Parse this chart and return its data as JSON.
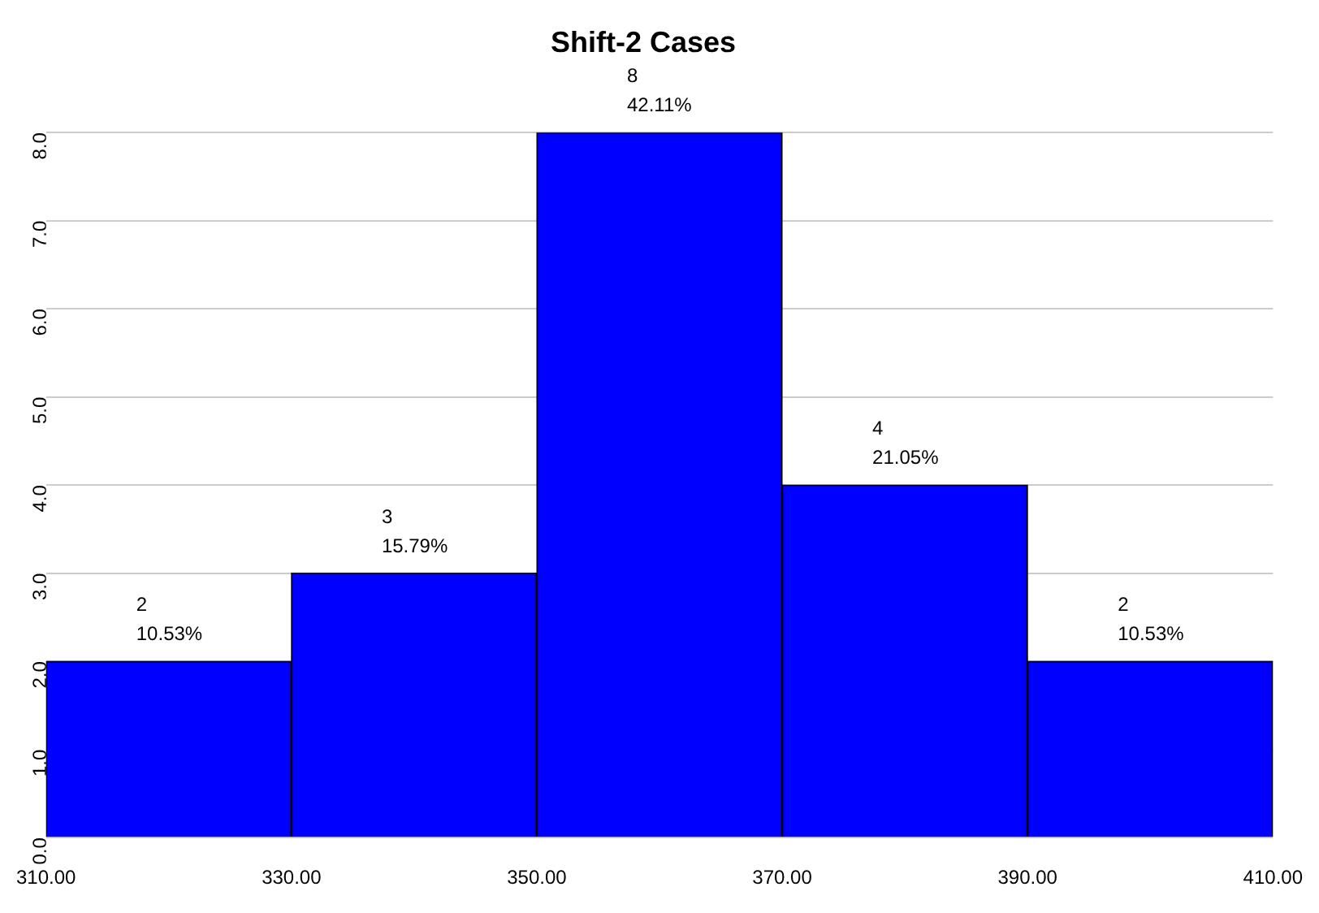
{
  "chart_data": {
    "type": "histogram",
    "title": "Shift-2 Cases",
    "bins": [
      310,
      330,
      350,
      370,
      390,
      410
    ],
    "values": [
      2,
      3,
      8,
      4,
      2
    ],
    "value_labels": [
      "2\n10.53%",
      "3\n15.79%",
      "8\n42.11%",
      "4\n21.05%",
      "2\n10.53%"
    ],
    "color": "#0000ff",
    "xlim": [
      310,
      410
    ],
    "xticks": [
      {
        "value": 310,
        "label": "310.00"
      },
      {
        "value": 330,
        "label": "330.00"
      },
      {
        "value": 350,
        "label": "350.00"
      },
      {
        "value": 370,
        "label": "370.00"
      },
      {
        "value": 390,
        "label": "390.00"
      },
      {
        "value": 410,
        "label": "410.00"
      }
    ],
    "ylim": [
      0,
      8
    ],
    "yticks": [
      {
        "value": 0,
        "label": "0.0"
      },
      {
        "value": 1,
        "label": "1.0"
      },
      {
        "value": 2,
        "label": "2.0"
      },
      {
        "value": 3,
        "label": "3.0"
      },
      {
        "value": 4,
        "label": "4.0"
      },
      {
        "value": 5,
        "label": "5.0"
      },
      {
        "value": 6,
        "label": "6.0"
      },
      {
        "value": 7,
        "label": "7.0"
      },
      {
        "value": 8,
        "label": "8.0"
      }
    ],
    "grid": "y",
    "legend": false
  }
}
